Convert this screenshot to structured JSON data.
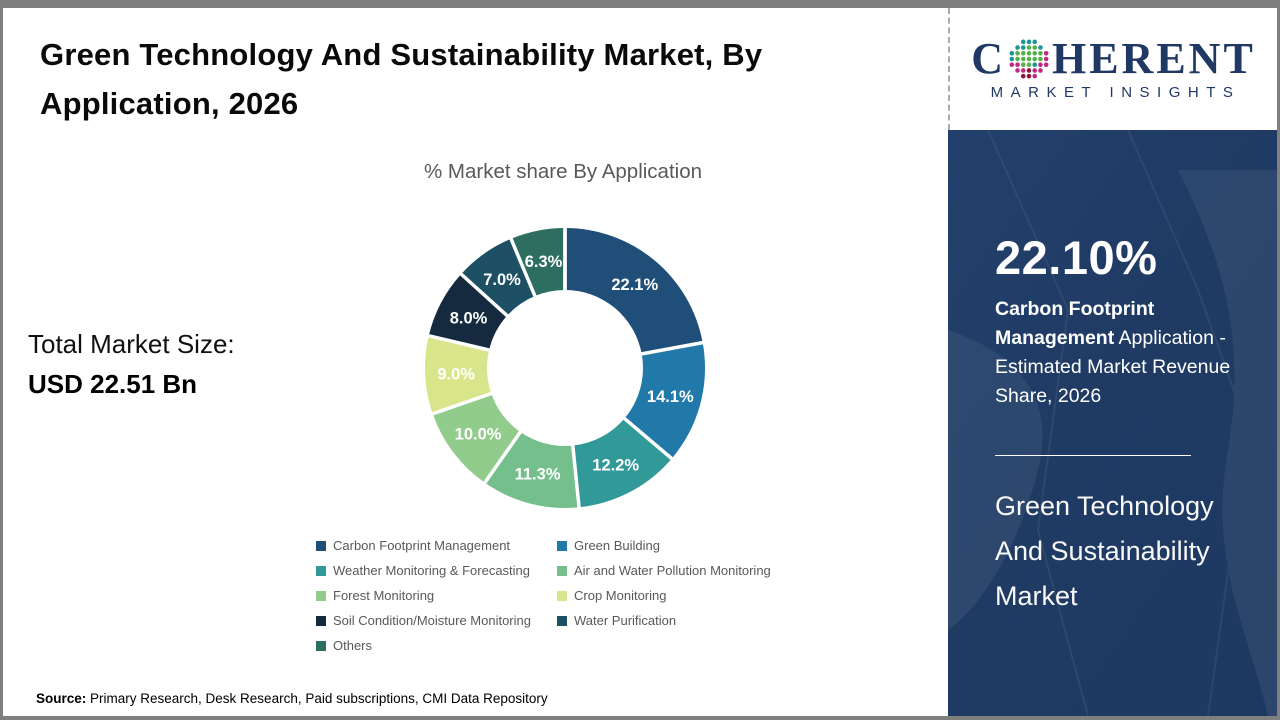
{
  "header": {
    "title": "Green Technology And Sustainability Market, By Application, 2026"
  },
  "chart": {
    "title": "% Market share By Application"
  },
  "total_market": {
    "label": "Total Market Size:",
    "value": "USD 22.51 Bn"
  },
  "source": {
    "prefix": "Source:",
    "text": " Primary Research, Desk Research, Paid subscriptions, CMI Data Repository"
  },
  "logo": {
    "brand_left": "C",
    "brand_right": "HERENT",
    "subtitle": "MARKET INSIGHTS",
    "brand_color": "#1F3864"
  },
  "sidebar": {
    "stat_value": "22.10%",
    "stat_bold": "Carbon Footprint Management",
    "stat_rest": " Application - Estimated Market Revenue Share, 2026",
    "market_name": "Green Technology And Sustainability Market",
    "panel_color": "#1F3B64"
  },
  "chart_data": {
    "type": "pie",
    "subtype": "donut",
    "title": "% Market share By Application",
    "categories": [
      "Carbon Footprint Management",
      "Green Building",
      "Weather Monitoring & Forecasting",
      "Air and Water Pollution Monitoring",
      "Forest Monitoring",
      "Crop Monitoring",
      "Soil Condition/Moisture Monitoring",
      "Water Purification",
      "Others"
    ],
    "values": [
      22.1,
      14.1,
      12.2,
      11.3,
      10.0,
      9.0,
      8.0,
      7.0,
      6.3
    ],
    "labels": [
      "22.1%",
      "14.1%",
      "12.2%",
      "11.3%",
      "10.0%",
      "9.0%",
      "8.0%",
      "7.0%",
      "6.3%"
    ],
    "colors": [
      "#1F4E79",
      "#2079A8",
      "#319A98",
      "#74BF8B",
      "#92CC8C",
      "#D9E58A",
      "#152A3F",
      "#1D5064",
      "#2E6E60"
    ],
    "start_angle_deg": 0,
    "direction": "clockwise",
    "legend_position": "bottom",
    "legend_columns": 2,
    "label_color": "#FFFFFF",
    "total_label": "Total Market Size: USD 22.51 Bn"
  }
}
